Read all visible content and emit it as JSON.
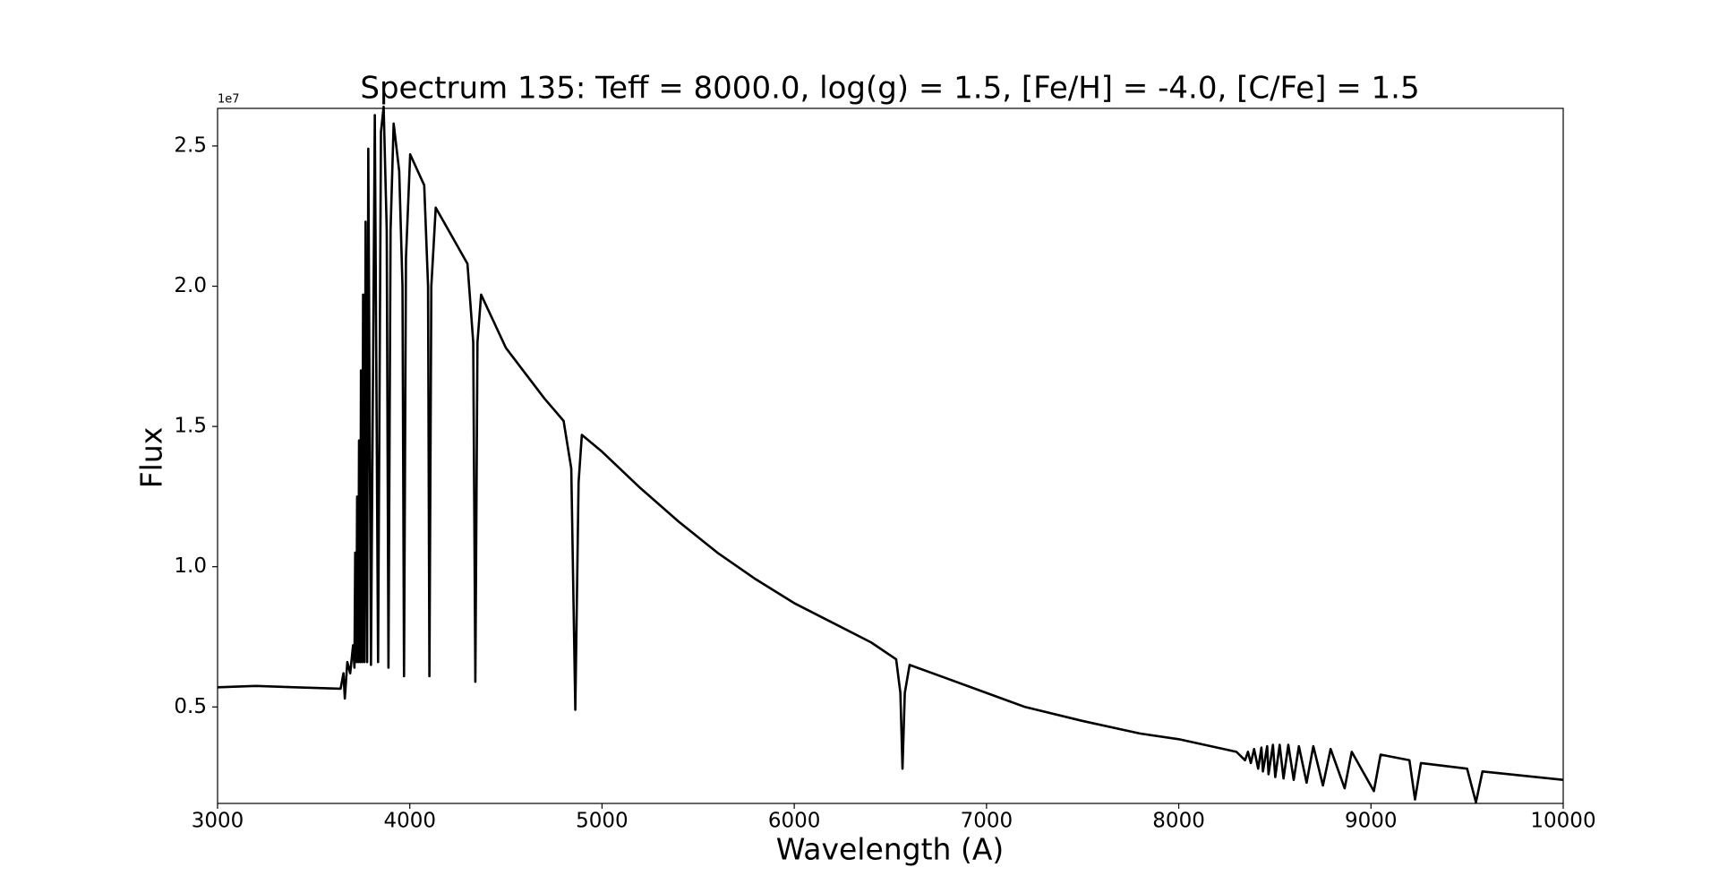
{
  "chart_data": {
    "type": "line",
    "title": "Spectrum 135: Teff = 8000.0, log(g) = 1.5, [Fe/H] = -4.0, [C/Fe] = 1.5",
    "xlabel": "Wavelength (A)",
    "ylabel": "Flux",
    "y_offset_label": "1e7",
    "color": "#000000",
    "grid": false,
    "xlim": [
      3000,
      10000
    ],
    "xticks": [
      3000,
      4000,
      5000,
      6000,
      7000,
      8000,
      9000,
      10000
    ],
    "ylim": [
      0.156,
      2.634
    ],
    "yticks": [
      0.5,
      {
        "value": 1,
        "label": "1.0"
      },
      1.5,
      {
        "value": 2,
        "label": "2.0"
      },
      2.5
    ],
    "x": [
      3000,
      3200,
      3400,
      3640,
      3655,
      3662,
      3675,
      3690,
      3705,
      3712,
      3716,
      3722,
      3726,
      3732,
      3736,
      3742,
      3746,
      3752,
      3757,
      3764,
      3770,
      3778,
      3784,
      3798,
      3818,
      3835,
      3850,
      3864,
      3880,
      3889,
      3900,
      3916,
      3945,
      3962,
      3970,
      3980,
      4002,
      4075,
      4095,
      4102,
      4112,
      4135,
      4300,
      4330,
      4341,
      4352,
      4371,
      4500,
      4700,
      4800,
      4840,
      4861,
      4878,
      4895,
      5000,
      5200,
      5400,
      5600,
      5800,
      6000,
      6200,
      6400,
      6530,
      6552,
      6563,
      6575,
      6600,
      6800,
      7000,
      7200,
      7500,
      7800,
      8000,
      8300,
      8345,
      8360,
      8375,
      8392,
      8413,
      8430,
      8438,
      8460,
      8467,
      8490,
      8502,
      8525,
      8545,
      8570,
      8598,
      8625,
      8665,
      8700,
      8750,
      8790,
      8863,
      8900,
      9015,
      9050,
      9200,
      9229,
      9260,
      9500,
      9546,
      9580,
      10000
    ],
    "values": [
      0.57,
      0.575,
      0.57,
      0.565,
      0.62,
      0.53,
      0.66,
      0.62,
      0.72,
      0.64,
      1.05,
      0.66,
      1.25,
      0.66,
      1.45,
      0.66,
      1.7,
      0.66,
      1.97,
      0.66,
      2.23,
      0.66,
      2.49,
      0.65,
      2.61,
      0.66,
      2.55,
      2.64,
      2.2,
      0.64,
      2.2,
      2.58,
      2.41,
      2.0,
      0.61,
      2.1,
      2.47,
      2.36,
      2.0,
      0.61,
      2.0,
      2.28,
      2.08,
      1.8,
      0.59,
      1.8,
      1.97,
      1.78,
      1.6,
      1.52,
      1.35,
      0.49,
      1.3,
      1.47,
      1.41,
      1.28,
      1.16,
      1.05,
      0.955,
      0.87,
      0.8,
      0.73,
      0.67,
      0.55,
      0.28,
      0.55,
      0.65,
      0.6,
      0.55,
      0.5,
      0.45,
      0.405,
      0.385,
      0.34,
      0.31,
      0.34,
      0.3,
      0.35,
      0.28,
      0.355,
      0.27,
      0.36,
      0.26,
      0.365,
      0.25,
      0.365,
      0.245,
      0.365,
      0.24,
      0.36,
      0.23,
      0.36,
      0.22,
      0.35,
      0.21,
      0.34,
      0.2,
      0.33,
      0.31,
      0.17,
      0.3,
      0.28,
      0.16,
      0.27,
      0.24
    ]
  }
}
